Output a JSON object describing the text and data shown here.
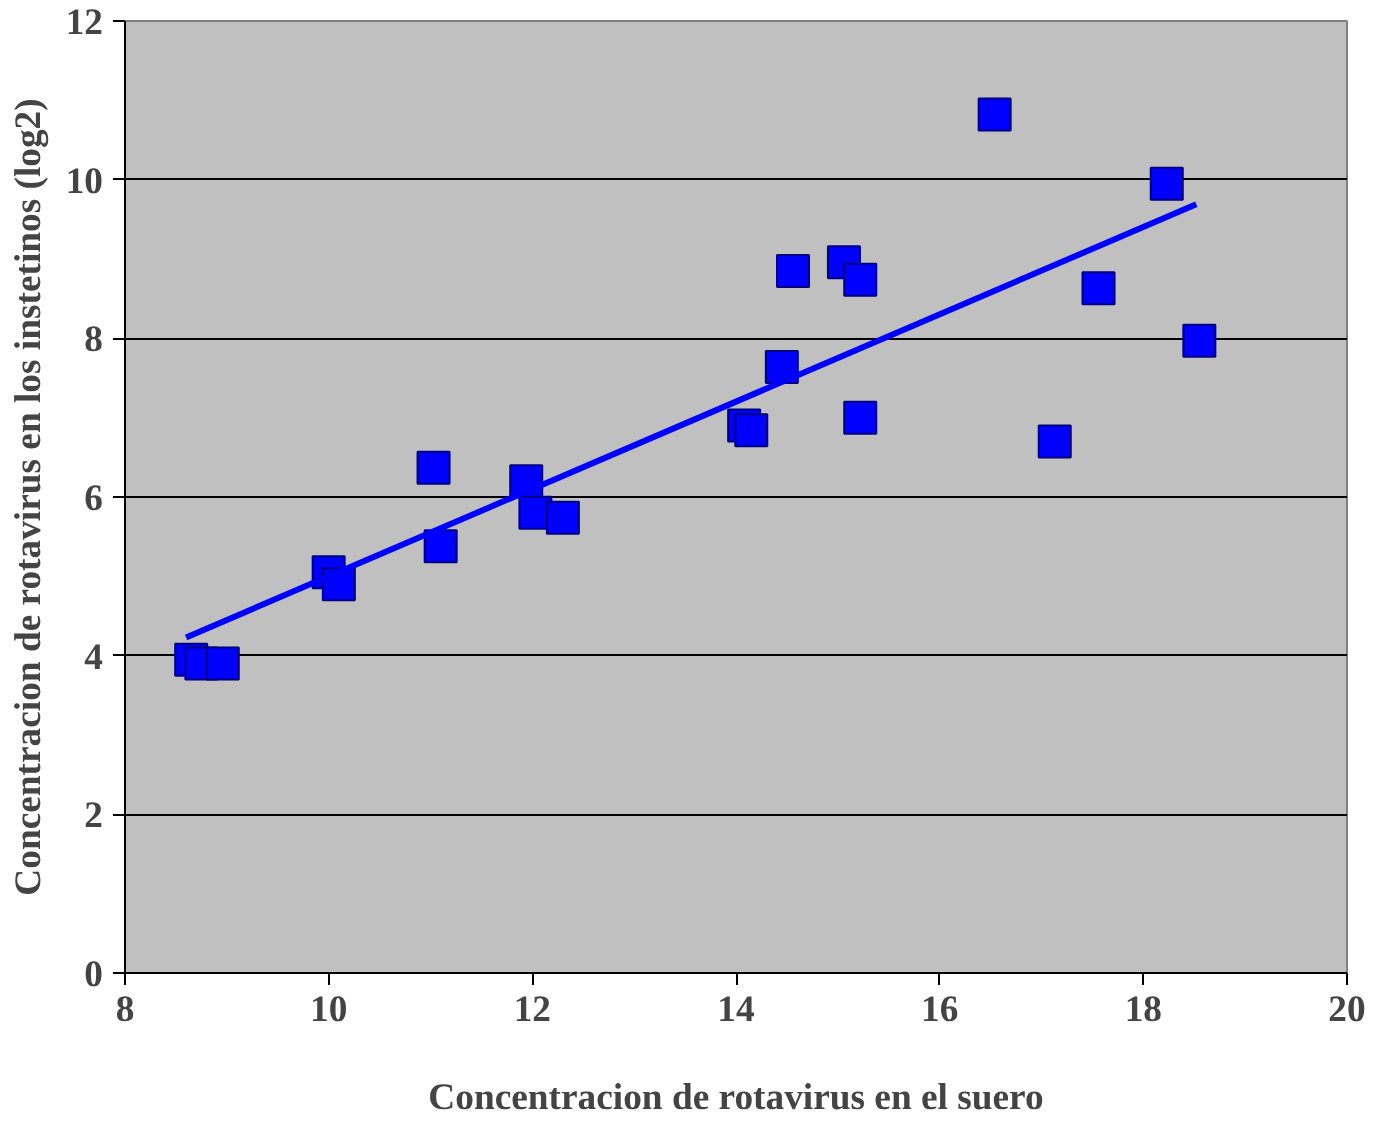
{
  "chart_data": {
    "type": "scatter",
    "xlabel": "Concentracion de rotavirus en el suero",
    "ylabel": "Concentracion de rotavirus en los instetinos (log2)",
    "xlim": [
      8,
      20
    ],
    "xticks": [
      8,
      10,
      12,
      14,
      16,
      18,
      20
    ],
    "ylim": [
      0,
      12
    ],
    "yticks": [
      0,
      2,
      4,
      6,
      8,
      10,
      12
    ],
    "grid": "y",
    "marker": "square",
    "series": [
      {
        "color": "#0000ff",
        "x": [
          8.65,
          8.75,
          8.96,
          10.0,
          10.1,
          11.03,
          11.1,
          11.94,
          12.03,
          12.3,
          14.08,
          14.15,
          14.45,
          14.56,
          15.06,
          15.22,
          15.22,
          16.54,
          17.13,
          17.56,
          18.23,
          18.55
        ],
        "values": [
          3.95,
          3.9,
          3.9,
          5.05,
          4.9,
          6.37,
          5.38,
          6.2,
          5.8,
          5.74,
          6.9,
          6.84,
          7.64,
          8.85,
          8.96,
          8.74,
          7.0,
          10.82,
          6.7,
          8.63,
          9.95,
          7.97
        ]
      },
      {
        "type": "line",
        "marker": "none",
        "color": "#0000ff",
        "x": [
          8.6,
          18.52
        ],
        "values": [
          4.23,
          9.69
        ]
      }
    ]
  }
}
